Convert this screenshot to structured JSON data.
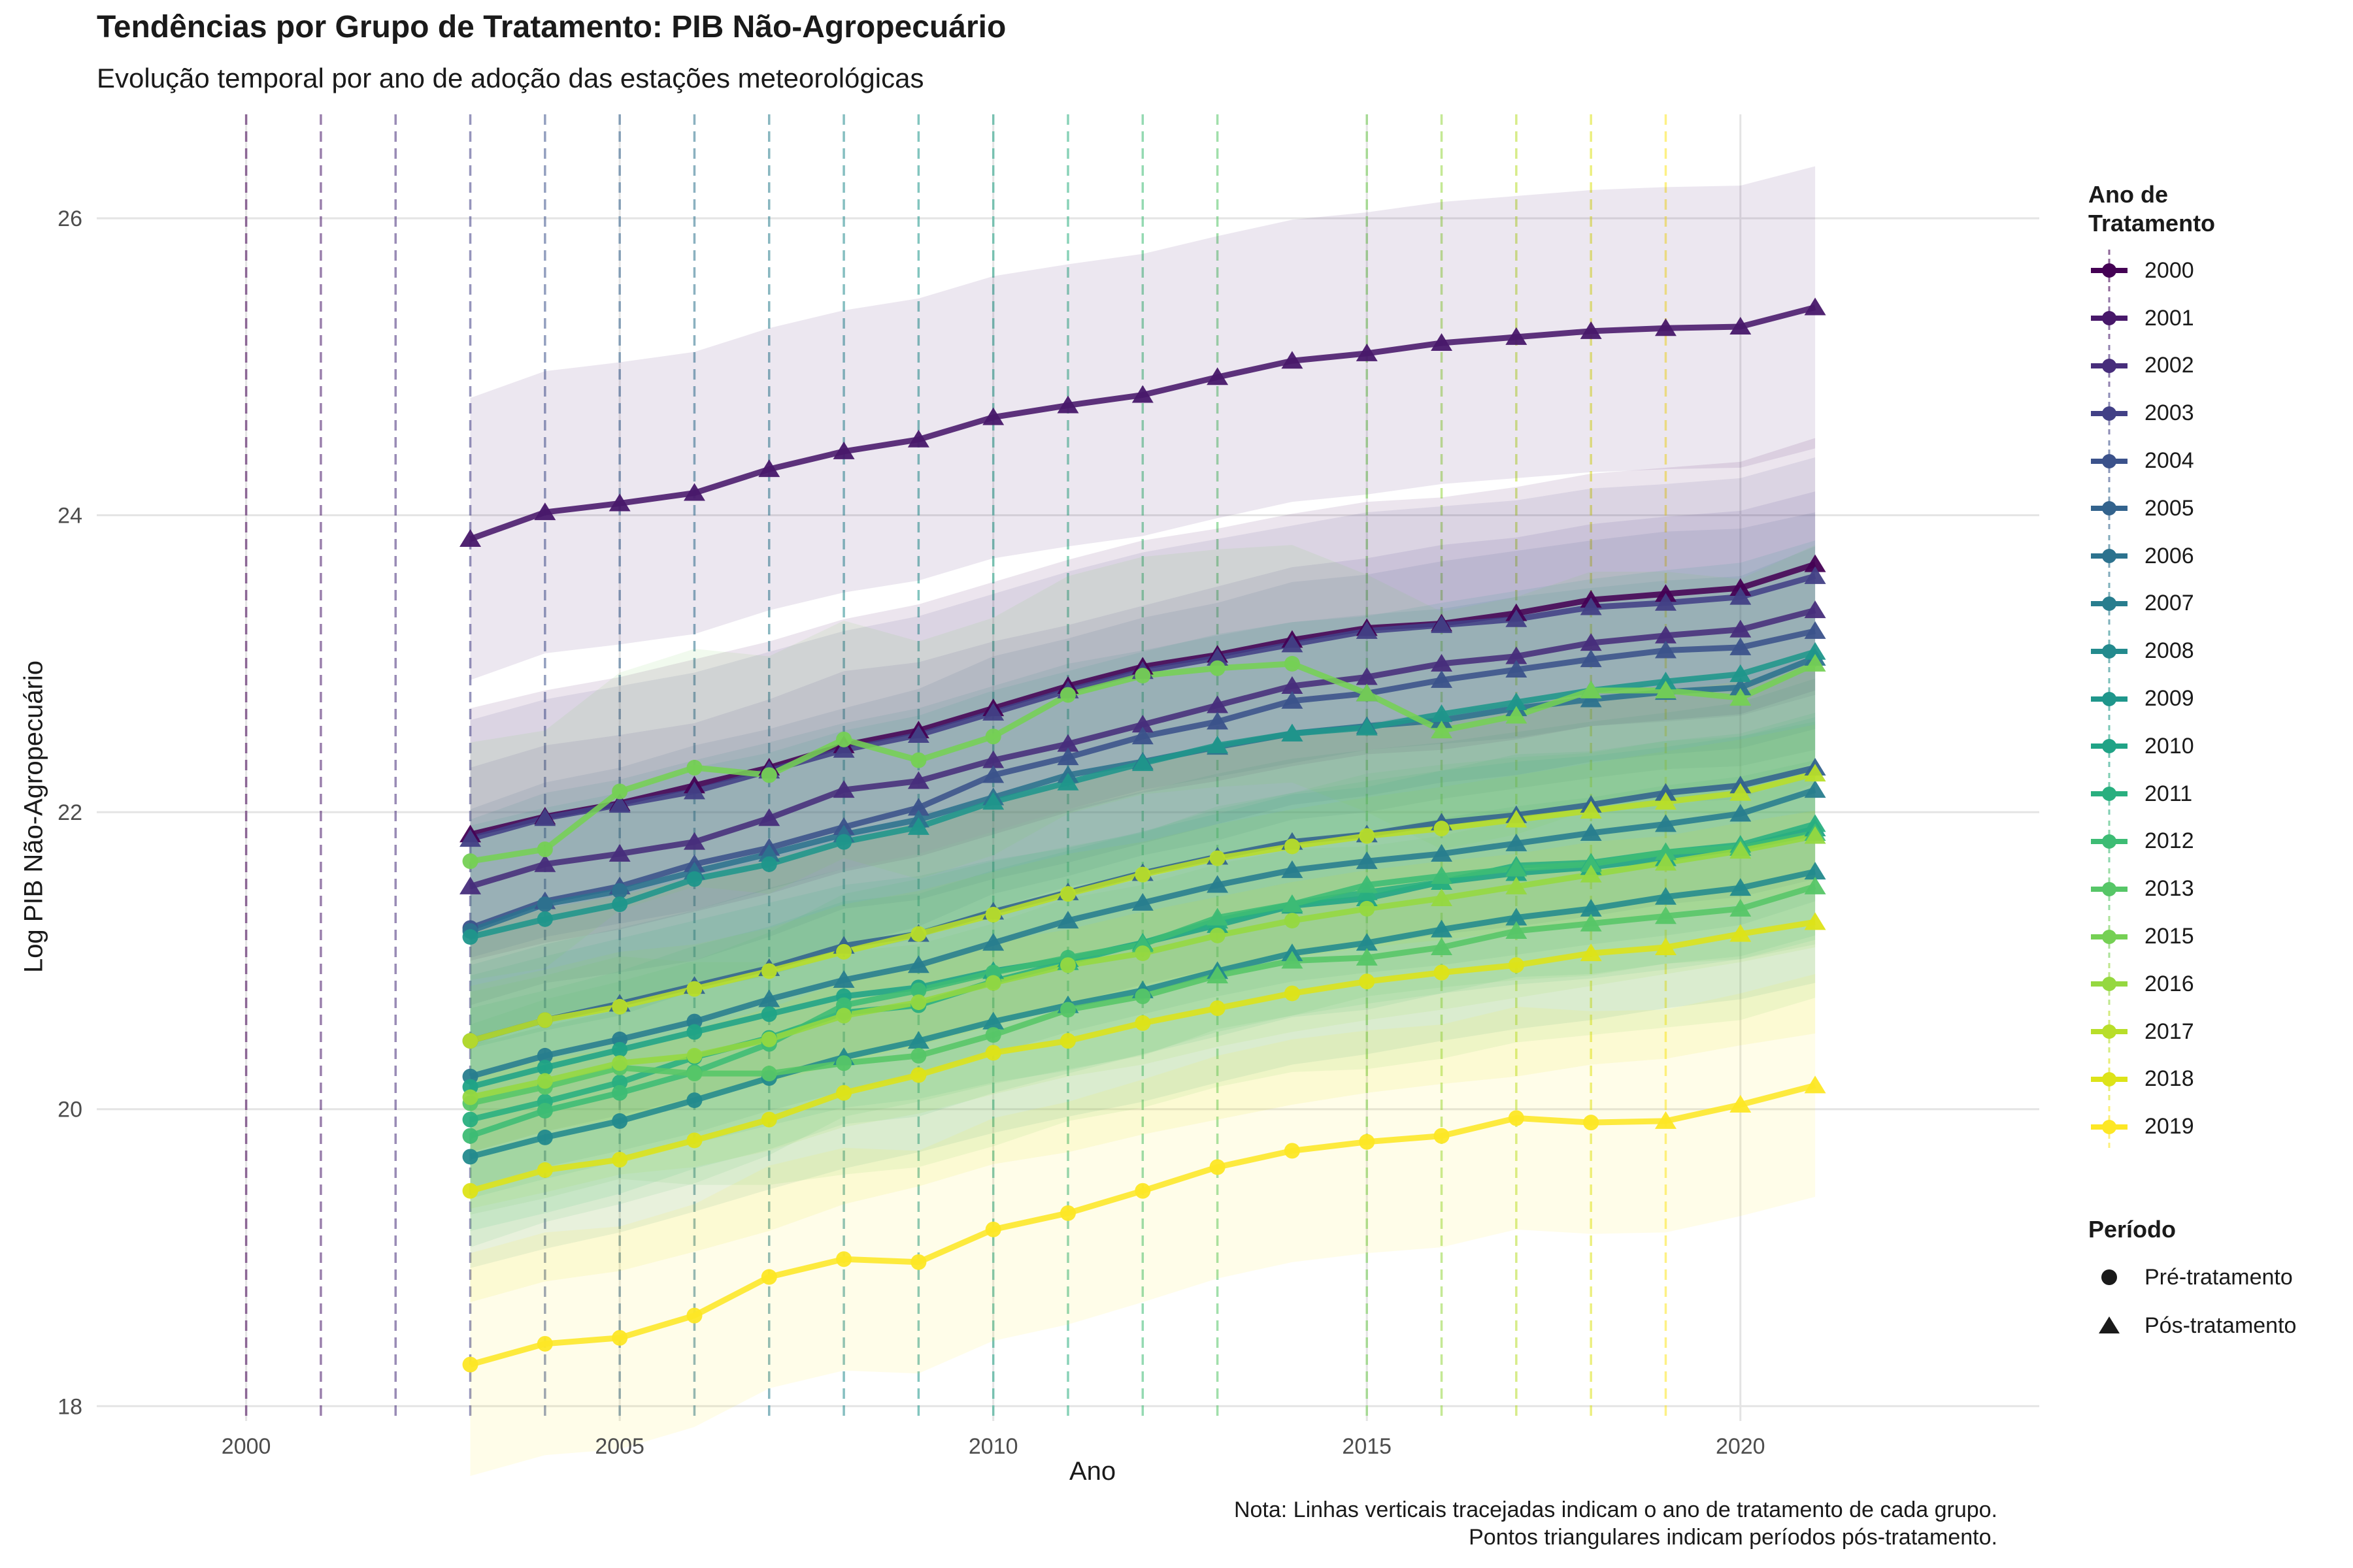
{
  "chart_data": {
    "type": "line",
    "title": "Tendências por Grupo de Tratamento: PIB Não-Agropecuário",
    "subtitle": "Evolução temporal por ano de adoção das estações meteorológicas",
    "xlabel": "Ano",
    "ylabel": "Log PIB Não-Agropecuário",
    "xlim": [
      1998,
      2024
    ],
    "ylim": [
      17.9,
      26.7
    ],
    "xticks": [
      2000,
      2005,
      2010,
      2015,
      2020
    ],
    "yticks": [
      18,
      20,
      22,
      24,
      26
    ],
    "grid": true,
    "legend_position": "right",
    "years": [
      2003,
      2004,
      2005,
      2006,
      2007,
      2008,
      2009,
      2010,
      2011,
      2012,
      2013,
      2014,
      2015,
      2016,
      2017,
      2018,
      2019,
      2020,
      2021
    ],
    "series": [
      {
        "name": "2000",
        "treatment_year": 2000,
        "color": "#440154",
        "ribbon": 0.85,
        "values": [
          21.85,
          21.97,
          22.06,
          22.18,
          22.3,
          22.45,
          22.55,
          22.7,
          22.85,
          22.98,
          23.06,
          23.16,
          23.24,
          23.27,
          23.34,
          23.43,
          23.47,
          23.51,
          23.67
        ]
      },
      {
        "name": "2001",
        "treatment_year": 2001,
        "color": "#48186a",
        "ribbon": 0.95,
        "values": [
          23.84,
          24.02,
          24.08,
          24.15,
          24.31,
          24.43,
          24.51,
          24.66,
          24.74,
          24.81,
          24.93,
          25.04,
          25.09,
          25.16,
          25.2,
          25.24,
          25.26,
          25.27,
          25.4
        ]
      },
      {
        "name": "2002",
        "treatment_year": 2002,
        "color": "#472d7b",
        "ribbon": 0.8,
        "values": [
          21.5,
          21.65,
          21.72,
          21.8,
          21.96,
          22.15,
          22.21,
          22.35,
          22.46,
          22.59,
          22.72,
          22.85,
          22.91,
          23.0,
          23.05,
          23.14,
          23.19,
          23.23,
          23.36
        ]
      },
      {
        "name": "2003",
        "treatment_year": 2003,
        "color": "#424086",
        "ribbon": 0.8,
        "values": [
          21.82,
          21.96,
          22.05,
          22.14,
          22.28,
          22.42,
          22.52,
          22.67,
          22.82,
          22.95,
          23.04,
          23.13,
          23.22,
          23.26,
          23.3,
          23.38,
          23.41,
          23.45,
          23.59
        ]
      },
      {
        "name": "2004",
        "treatment_year": 2004,
        "color": "#3b528b",
        "ribbon": 0.8,
        "values": [
          21.22,
          21.4,
          21.5,
          21.65,
          21.76,
          21.9,
          22.03,
          22.25,
          22.37,
          22.51,
          22.61,
          22.75,
          22.8,
          22.89,
          22.96,
          23.03,
          23.09,
          23.11,
          23.22
        ]
      },
      {
        "name": "2005",
        "treatment_year": 2005,
        "color": "#33638d",
        "ribbon": 0.75,
        "values": [
          20.46,
          20.6,
          20.71,
          20.83,
          20.95,
          21.1,
          21.18,
          21.33,
          21.46,
          21.59,
          21.7,
          21.8,
          21.85,
          21.93,
          21.98,
          22.05,
          22.13,
          22.18,
          22.3
        ]
      },
      {
        "name": "2006",
        "treatment_year": 2006,
        "color": "#2c728e",
        "ribbon": 0.75,
        "values": [
          21.2,
          21.38,
          21.47,
          21.6,
          21.72,
          21.85,
          21.95,
          22.1,
          22.25,
          22.34,
          22.44,
          22.53,
          22.58,
          22.62,
          22.7,
          22.76,
          22.81,
          22.84,
          23.04
        ]
      },
      {
        "name": "2007",
        "treatment_year": 2007,
        "color": "#287d8e",
        "ribbon": 0.75,
        "values": [
          20.22,
          20.36,
          20.47,
          20.59,
          20.74,
          20.87,
          20.97,
          21.12,
          21.27,
          21.39,
          21.51,
          21.61,
          21.67,
          21.72,
          21.79,
          21.86,
          21.92,
          21.99,
          22.15
        ]
      },
      {
        "name": "2008",
        "treatment_year": 2008,
        "color": "#238a8d",
        "ribbon": 0.75,
        "values": [
          19.68,
          19.81,
          19.92,
          20.06,
          20.21,
          20.35,
          20.46,
          20.59,
          20.7,
          20.8,
          20.93,
          21.05,
          21.12,
          21.21,
          21.29,
          21.35,
          21.43,
          21.49,
          21.6
        ]
      },
      {
        "name": "2009",
        "treatment_year": 2009,
        "color": "#1f968b",
        "ribbon": 0.75,
        "values": [
          21.16,
          21.28,
          21.38,
          21.55,
          21.65,
          21.8,
          21.9,
          22.07,
          22.2,
          22.33,
          22.45,
          22.53,
          22.57,
          22.66,
          22.74,
          22.82,
          22.88,
          22.93,
          23.08
        ]
      },
      {
        "name": "2010",
        "treatment_year": 2010,
        "color": "#20a386",
        "ribbon": 0.75,
        "values": [
          20.15,
          20.28,
          20.4,
          20.52,
          20.64,
          20.76,
          20.82,
          20.93,
          21.01,
          21.12,
          21.24,
          21.37,
          21.42,
          21.53,
          21.59,
          21.63,
          21.69,
          21.76,
          21.89
        ]
      },
      {
        "name": "2011",
        "treatment_year": 2011,
        "color": "#29af7f",
        "ribbon": 0.75,
        "values": [
          19.93,
          20.05,
          20.18,
          20.35,
          20.48,
          20.65,
          20.7,
          20.86,
          20.99,
          21.12,
          21.27,
          21.38,
          21.46,
          21.53,
          21.64,
          21.66,
          21.73,
          21.78,
          21.92
        ]
      },
      {
        "name": "2012",
        "treatment_year": 2012,
        "color": "#3dbc74",
        "ribbon": 0.75,
        "values": [
          19.82,
          19.99,
          20.11,
          20.25,
          20.44,
          20.7,
          20.8,
          20.92,
          21.02,
          21.11,
          21.29,
          21.38,
          21.51,
          21.57,
          21.62,
          21.65,
          21.73,
          21.76,
          21.86
        ]
      },
      {
        "name": "2013",
        "treatment_year": 2013,
        "color": "#56c667",
        "ribbon": 0.75,
        "values": [
          20.04,
          20.15,
          20.28,
          20.24,
          20.24,
          20.31,
          20.36,
          20.5,
          20.67,
          20.76,
          20.9,
          21.0,
          21.02,
          21.09,
          21.2,
          21.25,
          21.3,
          21.35,
          21.5
        ]
      },
      {
        "name": "2015",
        "treatment_year": 2015,
        "color": "#75d054",
        "ribbon": 0.8,
        "values": [
          21.67,
          21.75,
          22.14,
          22.3,
          22.25,
          22.49,
          22.35,
          22.51,
          22.79,
          22.92,
          22.97,
          23.0,
          22.8,
          22.55,
          22.65,
          22.82,
          22.82,
          22.77,
          23.0
        ]
      },
      {
        "name": "2016",
        "treatment_year": 2016,
        "color": "#95d840",
        "ribbon": 0.75,
        "values": [
          20.08,
          20.19,
          20.31,
          20.36,
          20.47,
          20.63,
          20.72,
          20.85,
          20.97,
          21.05,
          21.17,
          21.27,
          21.35,
          21.42,
          21.5,
          21.58,
          21.66,
          21.74,
          21.84
        ]
      },
      {
        "name": "2017",
        "treatment_year": 2017,
        "color": "#b8de29",
        "ribbon": 0.75,
        "values": [
          20.46,
          20.6,
          20.69,
          20.81,
          20.93,
          21.06,
          21.18,
          21.31,
          21.45,
          21.58,
          21.69,
          21.77,
          21.84,
          21.89,
          21.95,
          22.01,
          22.07,
          22.13,
          22.26
        ]
      },
      {
        "name": "2018",
        "treatment_year": 2018,
        "color": "#dde318",
        "ribbon": 0.75,
        "values": [
          19.45,
          19.59,
          19.66,
          19.79,
          19.93,
          20.11,
          20.23,
          20.38,
          20.46,
          20.58,
          20.68,
          20.78,
          20.86,
          20.92,
          20.97,
          21.05,
          21.09,
          21.18,
          21.26
        ]
      },
      {
        "name": "2019",
        "treatment_year": 2019,
        "color": "#fde725",
        "ribbon": 0.75,
        "values": [
          18.28,
          18.42,
          18.46,
          18.61,
          18.87,
          18.99,
          18.97,
          19.19,
          19.3,
          19.45,
          19.61,
          19.72,
          19.78,
          19.82,
          19.94,
          19.91,
          19.92,
          20.03,
          20.16
        ]
      }
    ],
    "vlines": [
      {
        "year": 2000,
        "color": "#440154"
      },
      {
        "year": 2001,
        "color": "#48186a"
      },
      {
        "year": 2002,
        "color": "#472d7b"
      },
      {
        "year": 2003,
        "color": "#424086"
      },
      {
        "year": 2004,
        "color": "#3b528b"
      },
      {
        "year": 2005,
        "color": "#33638d"
      },
      {
        "year": 2006,
        "color": "#2c728e"
      },
      {
        "year": 2007,
        "color": "#287d8e"
      },
      {
        "year": 2008,
        "color": "#238a8d"
      },
      {
        "year": 2009,
        "color": "#1f968b"
      },
      {
        "year": 2010,
        "color": "#20a386"
      },
      {
        "year": 2011,
        "color": "#29af7f"
      },
      {
        "year": 2012,
        "color": "#3dbc74"
      },
      {
        "year": 2013,
        "color": "#56c667"
      },
      {
        "year": 2015,
        "color": "#75d054"
      },
      {
        "year": 2016,
        "color": "#95d840"
      },
      {
        "year": 2017,
        "color": "#b8de29"
      },
      {
        "year": 2018,
        "color": "#dde318"
      },
      {
        "year": 2019,
        "color": "#fde725"
      }
    ],
    "legend_color_title": "Ano de\nTratamento",
    "legend_shape_title": "Período",
    "legend_shapes": [
      {
        "label": "Pré-tratamento",
        "shape": "circle"
      },
      {
        "label": "Pós-tratamento",
        "shape": "triangle"
      }
    ],
    "caption": [
      "Nota: Linhas verticais tracejadas indicam o ano de tratamento de cada grupo.",
      "Pontos triangulares indicam períodos pós-tratamento."
    ]
  }
}
